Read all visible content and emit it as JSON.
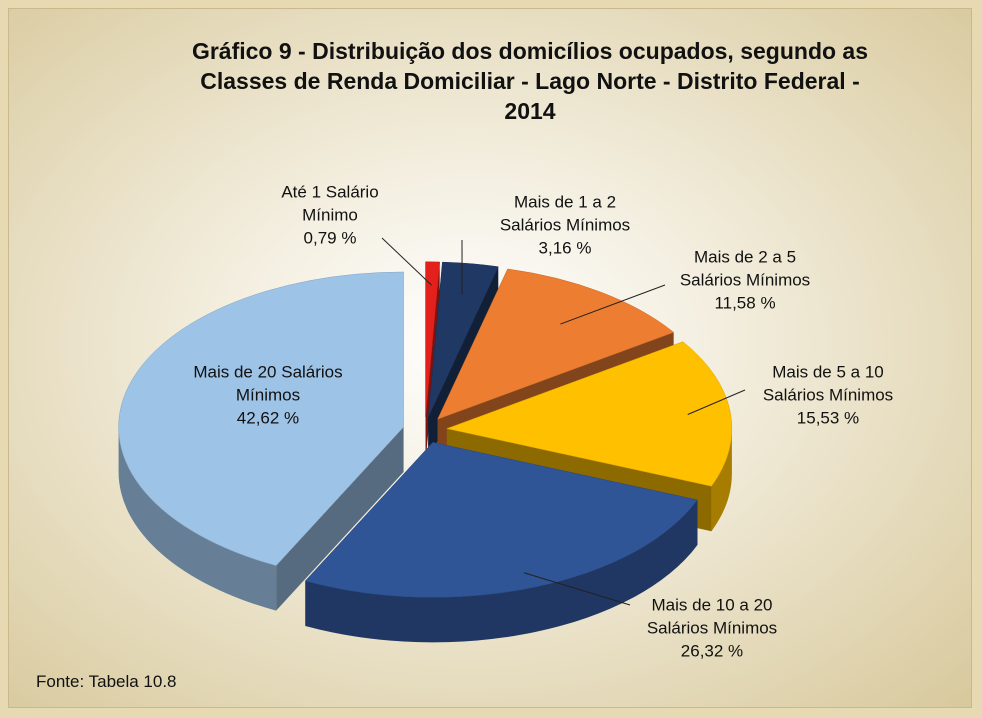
{
  "chart_data": {
    "type": "pie",
    "title": "Gráfico 9 - Distribuição dos domicílios ocupados, segundo as Classes de Renda Domiciliar - Lago Norte - Distrito Federal - 2014",
    "categories": [
      "Até 1 Salário Mínimo",
      "Mais de 1 a 2 Salários Mínimos",
      "Mais de 2 a 5 Salários Mínimos",
      "Mais de 5 a 10 Salários Mínimos",
      "Mais de 10 a 20 Salários Mínimos",
      "Mais de 20 Salários Mínimos"
    ],
    "values": [
      0.79,
      3.16,
      11.58,
      15.53,
      26.32,
      42.62
    ],
    "value_labels": [
      "0,79 %",
      "3,16 %",
      "11,58 %",
      "15,53 %",
      "26,32 %",
      "42,62 %"
    ],
    "colors": [
      "#e3201c",
      "#1f3864",
      "#ed7d31",
      "#ffc000",
      "#2f5597",
      "#9dc3e6"
    ],
    "source": "Fonte: Tabela 10.8"
  }
}
